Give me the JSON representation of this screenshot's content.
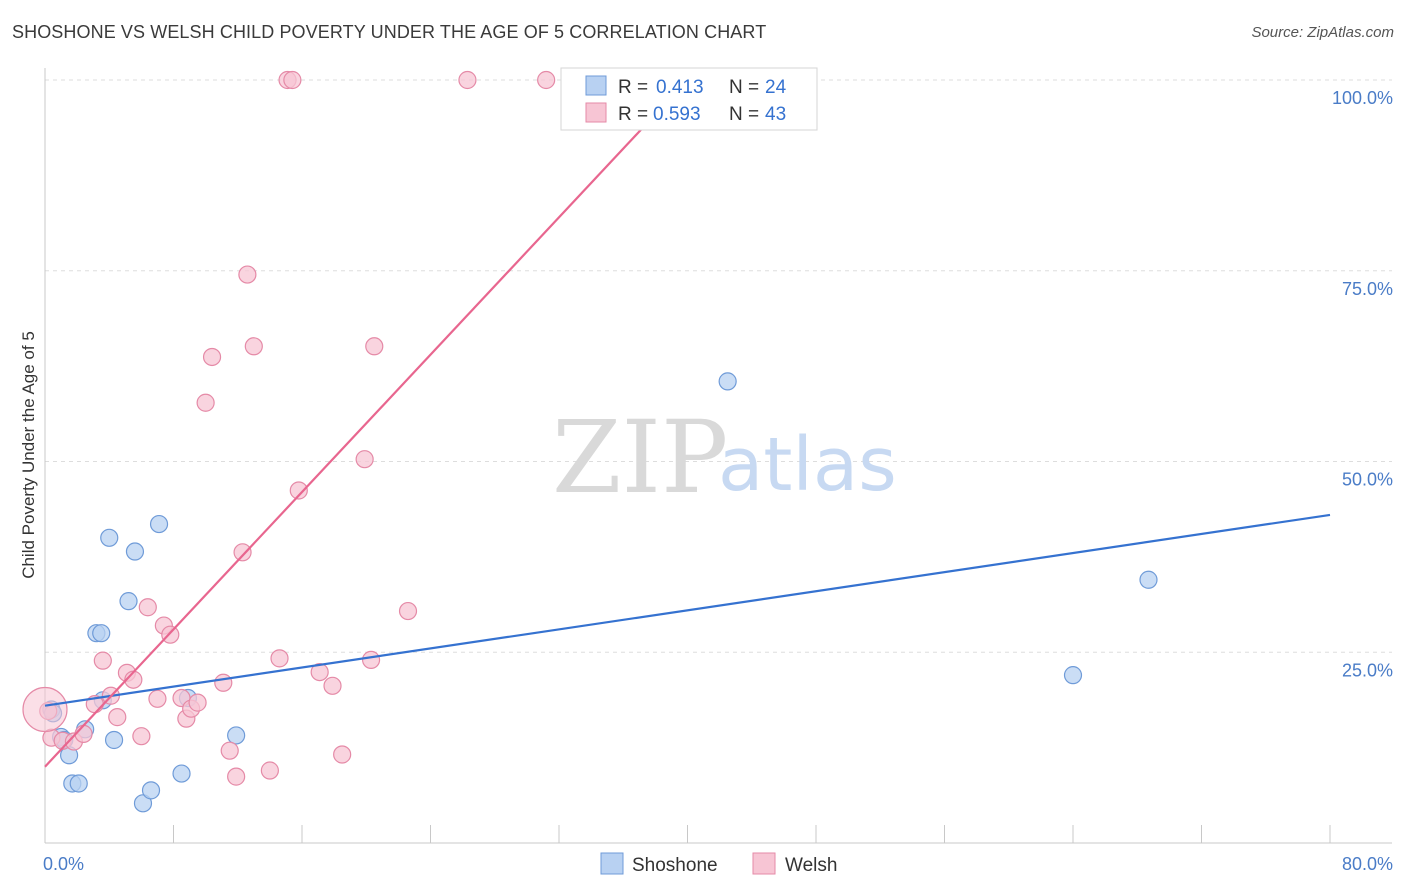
{
  "title": "SHOSHONE VS WELSH CHILD POVERTY UNDER THE AGE OF 5 CORRELATION CHART",
  "source": "Source: ZipAtlas.com",
  "watermark": {
    "zip": "ZIP",
    "atlas": "atlas"
  },
  "colors": {
    "shoshone": "#3572d0",
    "shoshone_fill": "#b8d1f2",
    "welsh": "#e8668f",
    "welsh_fill": "#f7c5d4",
    "tick": "#4a7cc7",
    "grid": "#dddddd"
  },
  "legend": {
    "rows": [
      {
        "r_label": "R =",
        "r_value": "0.413",
        "n_label": "N =",
        "n_value": "24"
      },
      {
        "r_label": "R =",
        "r_value": "0.593",
        "n_label": "N =",
        "n_value": "43"
      }
    ]
  },
  "bottom_legend": [
    "Shoshone",
    "Welsh"
  ],
  "chart_data": {
    "type": "scatter",
    "title": "SHOSHONE VS WELSH CHILD POVERTY UNDER THE AGE OF 5 CORRELATION CHART",
    "xlabel": "",
    "ylabel": "Child Poverty Under the Age of 5",
    "xlim": [
      0,
      80
    ],
    "ylim": [
      0,
      100
    ],
    "x_tick_labels": [
      "0.0%",
      "80.0%"
    ],
    "y_tick_labels": [
      "25.0%",
      "50.0%",
      "75.0%",
      "100.0%"
    ],
    "y_ticks": [
      25,
      50,
      75,
      100
    ],
    "grid": true,
    "series": [
      {
        "name": "Shoshone",
        "points": [
          [
            0.4,
            17.5
          ],
          [
            0.5,
            17.0
          ],
          [
            1.0,
            13.9
          ],
          [
            1.2,
            13.5
          ],
          [
            1.5,
            11.5
          ],
          [
            1.7,
            7.8
          ],
          [
            2.1,
            7.8
          ],
          [
            2.5,
            14.9
          ],
          [
            3.2,
            27.5
          ],
          [
            3.5,
            27.5
          ],
          [
            3.6,
            18.7
          ],
          [
            4.0,
            40.0
          ],
          [
            4.3,
            13.5
          ],
          [
            5.2,
            31.7
          ],
          [
            5.6,
            38.2
          ],
          [
            6.1,
            5.2
          ],
          [
            6.6,
            6.9
          ],
          [
            7.1,
            41.8
          ],
          [
            8.5,
            9.1
          ],
          [
            8.9,
            19.0
          ],
          [
            11.9,
            14.1
          ],
          [
            42.5,
            60.5
          ],
          [
            64.0,
            22.0
          ],
          [
            68.7,
            34.5
          ]
        ],
        "trend": [
          [
            0,
            18.0
          ],
          [
            80,
            43.0
          ]
        ]
      },
      {
        "name": "Welsh",
        "points": [
          [
            0.2,
            17.3
          ],
          [
            0.4,
            13.8
          ],
          [
            1.1,
            13.4
          ],
          [
            1.8,
            13.3
          ],
          [
            2.4,
            14.3
          ],
          [
            3.1,
            18.2
          ],
          [
            3.6,
            23.9
          ],
          [
            4.1,
            19.3
          ],
          [
            4.5,
            16.5
          ],
          [
            5.1,
            22.3
          ],
          [
            5.5,
            21.4
          ],
          [
            6.0,
            14.0
          ],
          [
            6.4,
            30.9
          ],
          [
            7.0,
            18.9
          ],
          [
            7.4,
            28.5
          ],
          [
            7.8,
            27.3
          ],
          [
            8.5,
            19.0
          ],
          [
            8.8,
            16.3
          ],
          [
            9.1,
            17.6
          ],
          [
            9.5,
            18.4
          ],
          [
            10.0,
            57.7
          ],
          [
            10.4,
            63.7
          ],
          [
            11.1,
            21.0
          ],
          [
            11.5,
            12.1
          ],
          [
            11.9,
            8.7
          ],
          [
            12.3,
            38.1
          ],
          [
            12.6,
            74.5
          ],
          [
            13.0,
            65.1
          ],
          [
            14.0,
            9.5
          ],
          [
            14.6,
            24.2
          ],
          [
            15.1,
            100.0
          ],
          [
            15.4,
            100.0
          ],
          [
            15.8,
            46.2
          ],
          [
            17.1,
            22.4
          ],
          [
            17.9,
            20.6
          ],
          [
            18.5,
            11.6
          ],
          [
            19.9,
            50.3
          ],
          [
            20.3,
            24.0
          ],
          [
            20.5,
            65.1
          ],
          [
            22.6,
            30.4
          ],
          [
            26.3,
            100.0
          ],
          [
            31.2,
            100.0
          ],
          [
            0.0,
            17.5
          ]
        ],
        "trend": [
          [
            0,
            10.0
          ],
          [
            40.0,
            100.0
          ]
        ]
      }
    ]
  }
}
